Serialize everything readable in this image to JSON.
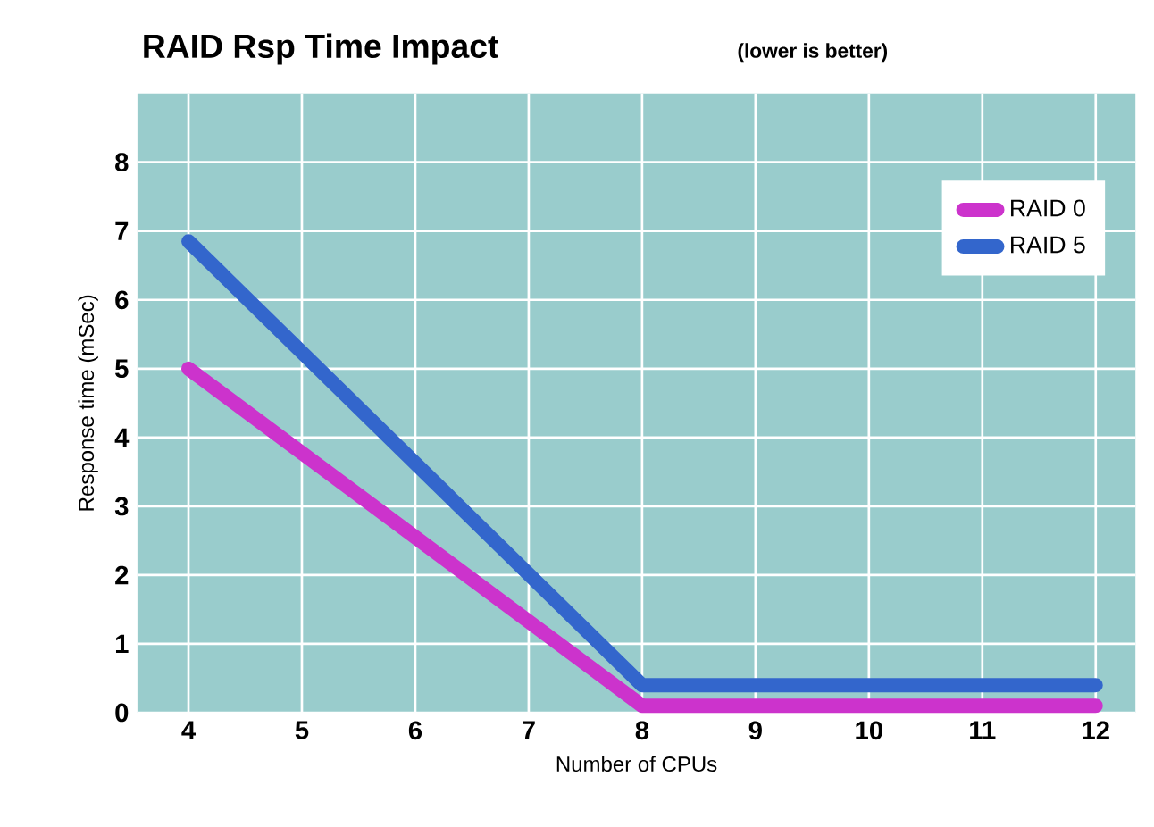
{
  "chart_data": {
    "type": "line",
    "title": "RAID Rsp Time Impact",
    "subtitle": "(lower is better)",
    "xlabel": "Number of CPUs",
    "ylabel": "Response time (mSec)",
    "x": [
      4,
      8,
      12
    ],
    "series": [
      {
        "name": "RAID 0",
        "color": "#cc33cc",
        "values": [
          5.0,
          0.1,
          0.1
        ]
      },
      {
        "name": "RAID 5",
        "color": "#3366cc",
        "values": [
          6.85,
          0.4,
          0.4
        ]
      }
    ],
    "xlim": [
      3.55,
      12.35
    ],
    "xticks": [
      4,
      5,
      6,
      7,
      8,
      9,
      10,
      11,
      12
    ],
    "ylim": [
      0,
      9
    ],
    "yticks": [
      0,
      1,
      2,
      3,
      4,
      5,
      6,
      7,
      8
    ],
    "grid": true,
    "legend": "top right",
    "marker": "none",
    "line_style": "solid"
  }
}
